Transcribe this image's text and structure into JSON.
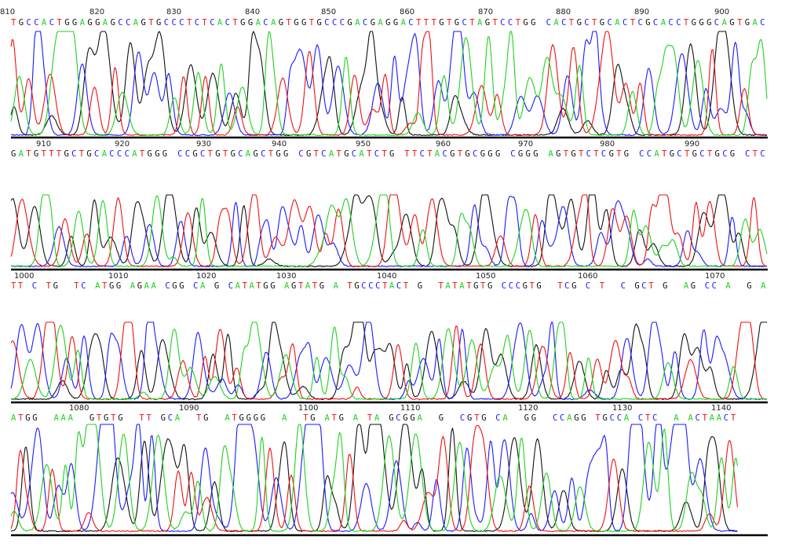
{
  "colors": {
    "A": "#1fd21f",
    "C": "#1a1aff",
    "G": "#111111",
    "T": "#ee1111",
    "axis": "#000000"
  },
  "panels": [
    {
      "positions": [
        "810",
        "820",
        "830",
        "840",
        "850",
        "860",
        "870",
        "880",
        "890",
        "900"
      ],
      "sequence": "TGCCACTGGAGGAGCCAGTGCCCTCTCACTGGACAGTGGTGCCCGACGAGGACTTTGTGCTAGTCCTGG CACTGCTGCACTCGCACCTGGGCAGTGAC"
    },
    {
      "positions": [
        "910",
        "920",
        "930",
        "940",
        "950",
        "960",
        "970",
        "980",
        "990"
      ],
      "sequence": "GATGTTTGCTGCACCCATGGG CCGCTGTGCAGCTGG CGTCATGCATCTG TTCTACGTGCGGG CGGG AGTGTCTCGTG CCATGCTGCTGCG CTC"
    },
    {
      "positions": [
        "1000",
        "1010",
        "1020",
        "1030",
        "1040",
        "1050",
        "1060",
        "1070"
      ],
      "sequence": "TT C TG  TC ATGG AGAA CGG CA G CATATGG AGTATG A TGCCCTACT G  TATATGTG CCCGTG  TCG C T  C GCT G  AG CC A  G A"
    },
    {
      "positions": [
        "1080",
        "1090",
        "1100",
        "1110",
        "1120",
        "1130",
        "1140"
      ],
      "sequence": "ATGG  AAA  GTGTG  TT GCA  TG  ATGGGG  A  TG ATG A TA GCGGA  G  CGTG CA  GG  CCAGG TGCCA CTC  A ACTAACT"
    }
  ]
}
